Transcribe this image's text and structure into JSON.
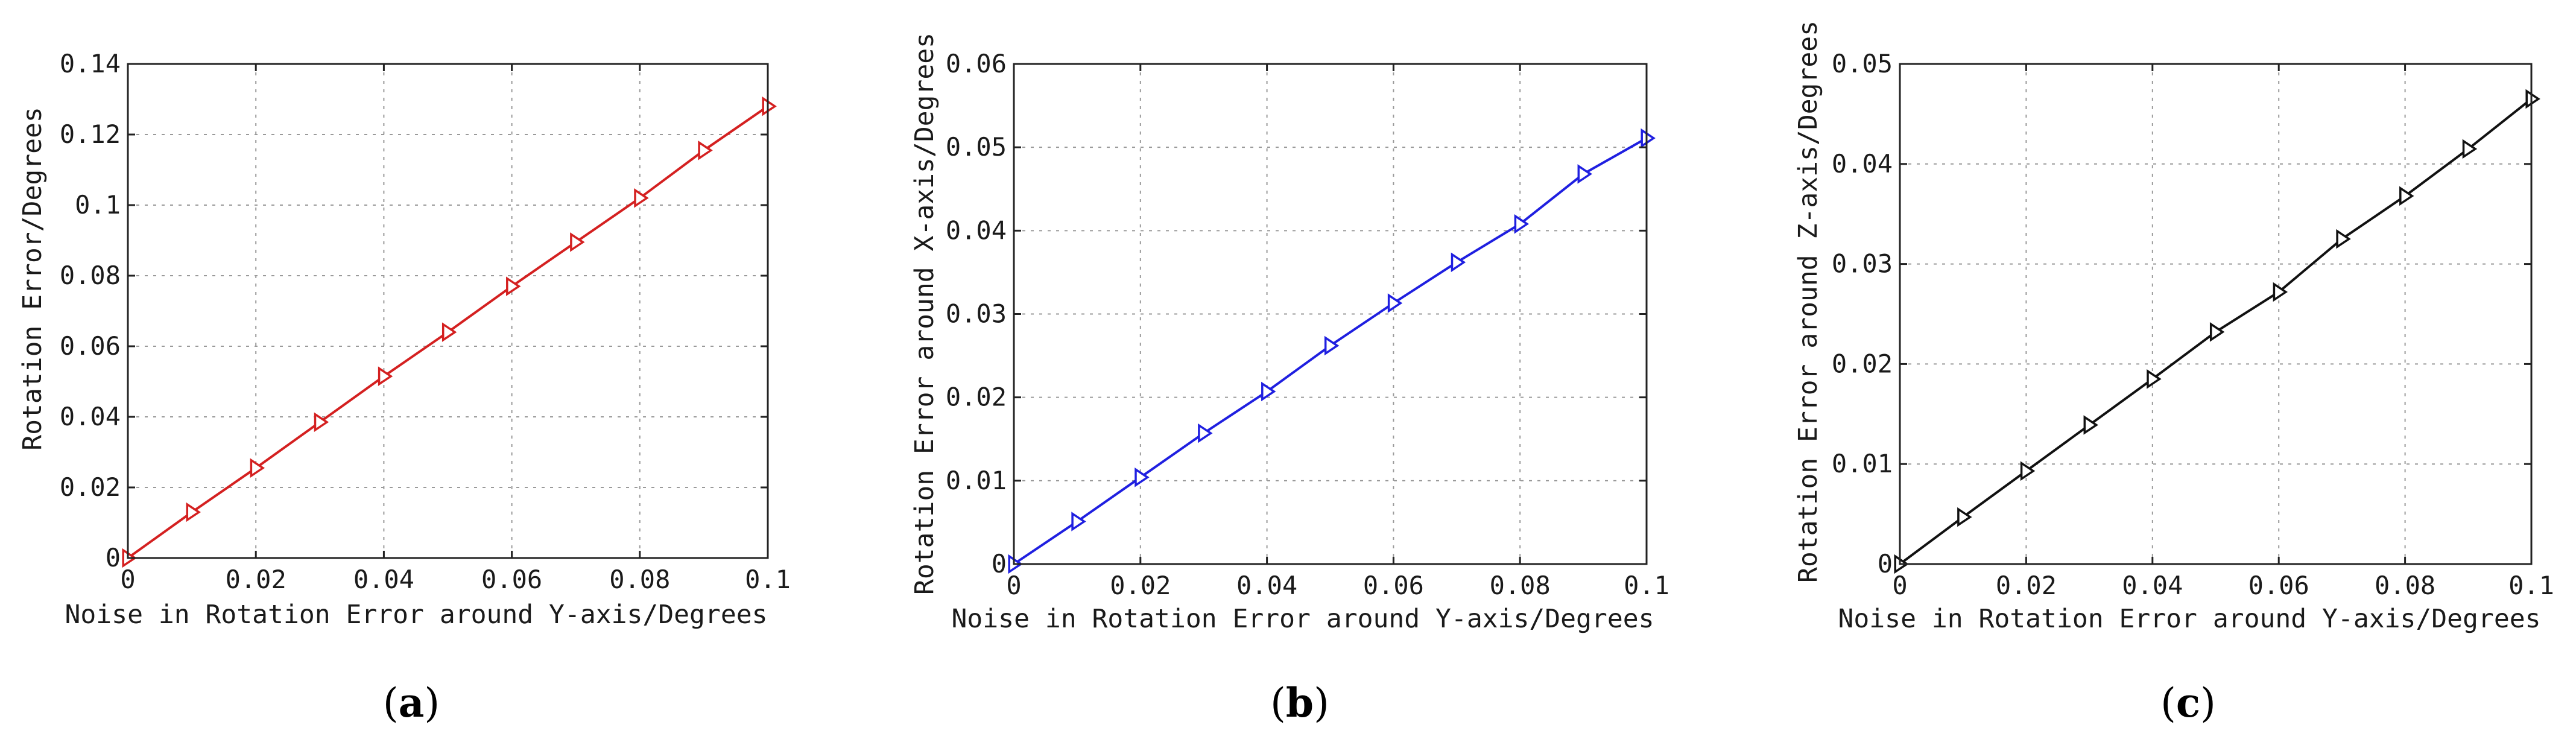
{
  "chart_data": [
    {
      "type": "line",
      "xlabel": "Noise in Rotation Error around Y-axis/Degrees",
      "ylabel": "Rotation Error/Degrees",
      "xlim": [
        0,
        0.1
      ],
      "ylim": [
        0,
        0.14
      ],
      "x_ticks": [
        "0",
        "0.02",
        "0.04",
        "0.06",
        "0.08",
        "0.1"
      ],
      "y_ticks": [
        "0",
        "0.02",
        "0.04",
        "0.06",
        "0.08",
        "0.1",
        "0.12",
        "0.14"
      ],
      "x_tick_values": [
        0,
        0.02,
        0.04,
        0.06,
        0.08,
        0.1
      ],
      "y_tick_values": [
        0,
        0.02,
        0.04,
        0.06,
        0.08,
        0.1,
        0.12,
        0.14
      ],
      "grid": true,
      "marker": "triangle-right",
      "color": "#d42020",
      "series": [
        {
          "x": [
            0,
            0.01,
            0.02,
            0.03,
            0.04,
            0.05,
            0.06,
            0.07,
            0.08,
            0.09,
            0.1
          ],
          "y": [
            0,
            0.013,
            0.0255,
            0.0385,
            0.0515,
            0.064,
            0.077,
            0.0895,
            0.102,
            0.1155,
            0.128
          ]
        }
      ],
      "caption_label": "a"
    },
    {
      "type": "line",
      "xlabel": "Noise in Rotation Error around Y-axis/Degrees",
      "ylabel": "Rotation Error around X-axis/Degrees",
      "xlim": [
        0,
        0.1
      ],
      "ylim": [
        0,
        0.06
      ],
      "x_ticks": [
        "0",
        "0.02",
        "0.04",
        "0.06",
        "0.08",
        "0.1"
      ],
      "y_ticks": [
        "0",
        "0.01",
        "0.02",
        "0.03",
        "0.04",
        "0.05",
        "0.06"
      ],
      "x_tick_values": [
        0,
        0.02,
        0.04,
        0.06,
        0.08,
        0.1
      ],
      "y_tick_values": [
        0,
        0.01,
        0.02,
        0.03,
        0.04,
        0.05,
        0.06
      ],
      "grid": true,
      "marker": "triangle-right",
      "color": "#1f1fe0",
      "series": [
        {
          "x": [
            0,
            0.01,
            0.02,
            0.03,
            0.04,
            0.05,
            0.06,
            0.07,
            0.08,
            0.09,
            0.1
          ],
          "y": [
            0,
            0.0051,
            0.0104,
            0.0157,
            0.0207,
            0.0262,
            0.0313,
            0.0362,
            0.0408,
            0.0468,
            0.0511
          ]
        }
      ],
      "caption_label": "b"
    },
    {
      "type": "line",
      "xlabel": "Noise in Rotation Error around Y-axis/Degrees",
      "ylabel": "Rotation Error around Z-axis/Degrees",
      "xlim": [
        0,
        0.1
      ],
      "ylim": [
        0,
        0.05
      ],
      "x_ticks": [
        "0",
        "0.02",
        "0.04",
        "0.06",
        "0.08",
        "0.1"
      ],
      "y_ticks": [
        "0",
        "0.01",
        "0.02",
        "0.03",
        "0.04",
        "0.05"
      ],
      "x_tick_values": [
        0,
        0.02,
        0.04,
        0.06,
        0.08,
        0.1
      ],
      "y_tick_values": [
        0,
        0.01,
        0.02,
        0.03,
        0.04,
        0.05
      ],
      "grid": true,
      "marker": "triangle-right",
      "color": "#111111",
      "series": [
        {
          "x": [
            0,
            0.01,
            0.02,
            0.03,
            0.04,
            0.05,
            0.06,
            0.07,
            0.08,
            0.09,
            0.1
          ],
          "y": [
            0,
            0.0047,
            0.0093,
            0.0139,
            0.0185,
            0.0232,
            0.0272,
            0.0325,
            0.0368,
            0.0415,
            0.0465
          ]
        }
      ],
      "caption_label": "c"
    }
  ]
}
